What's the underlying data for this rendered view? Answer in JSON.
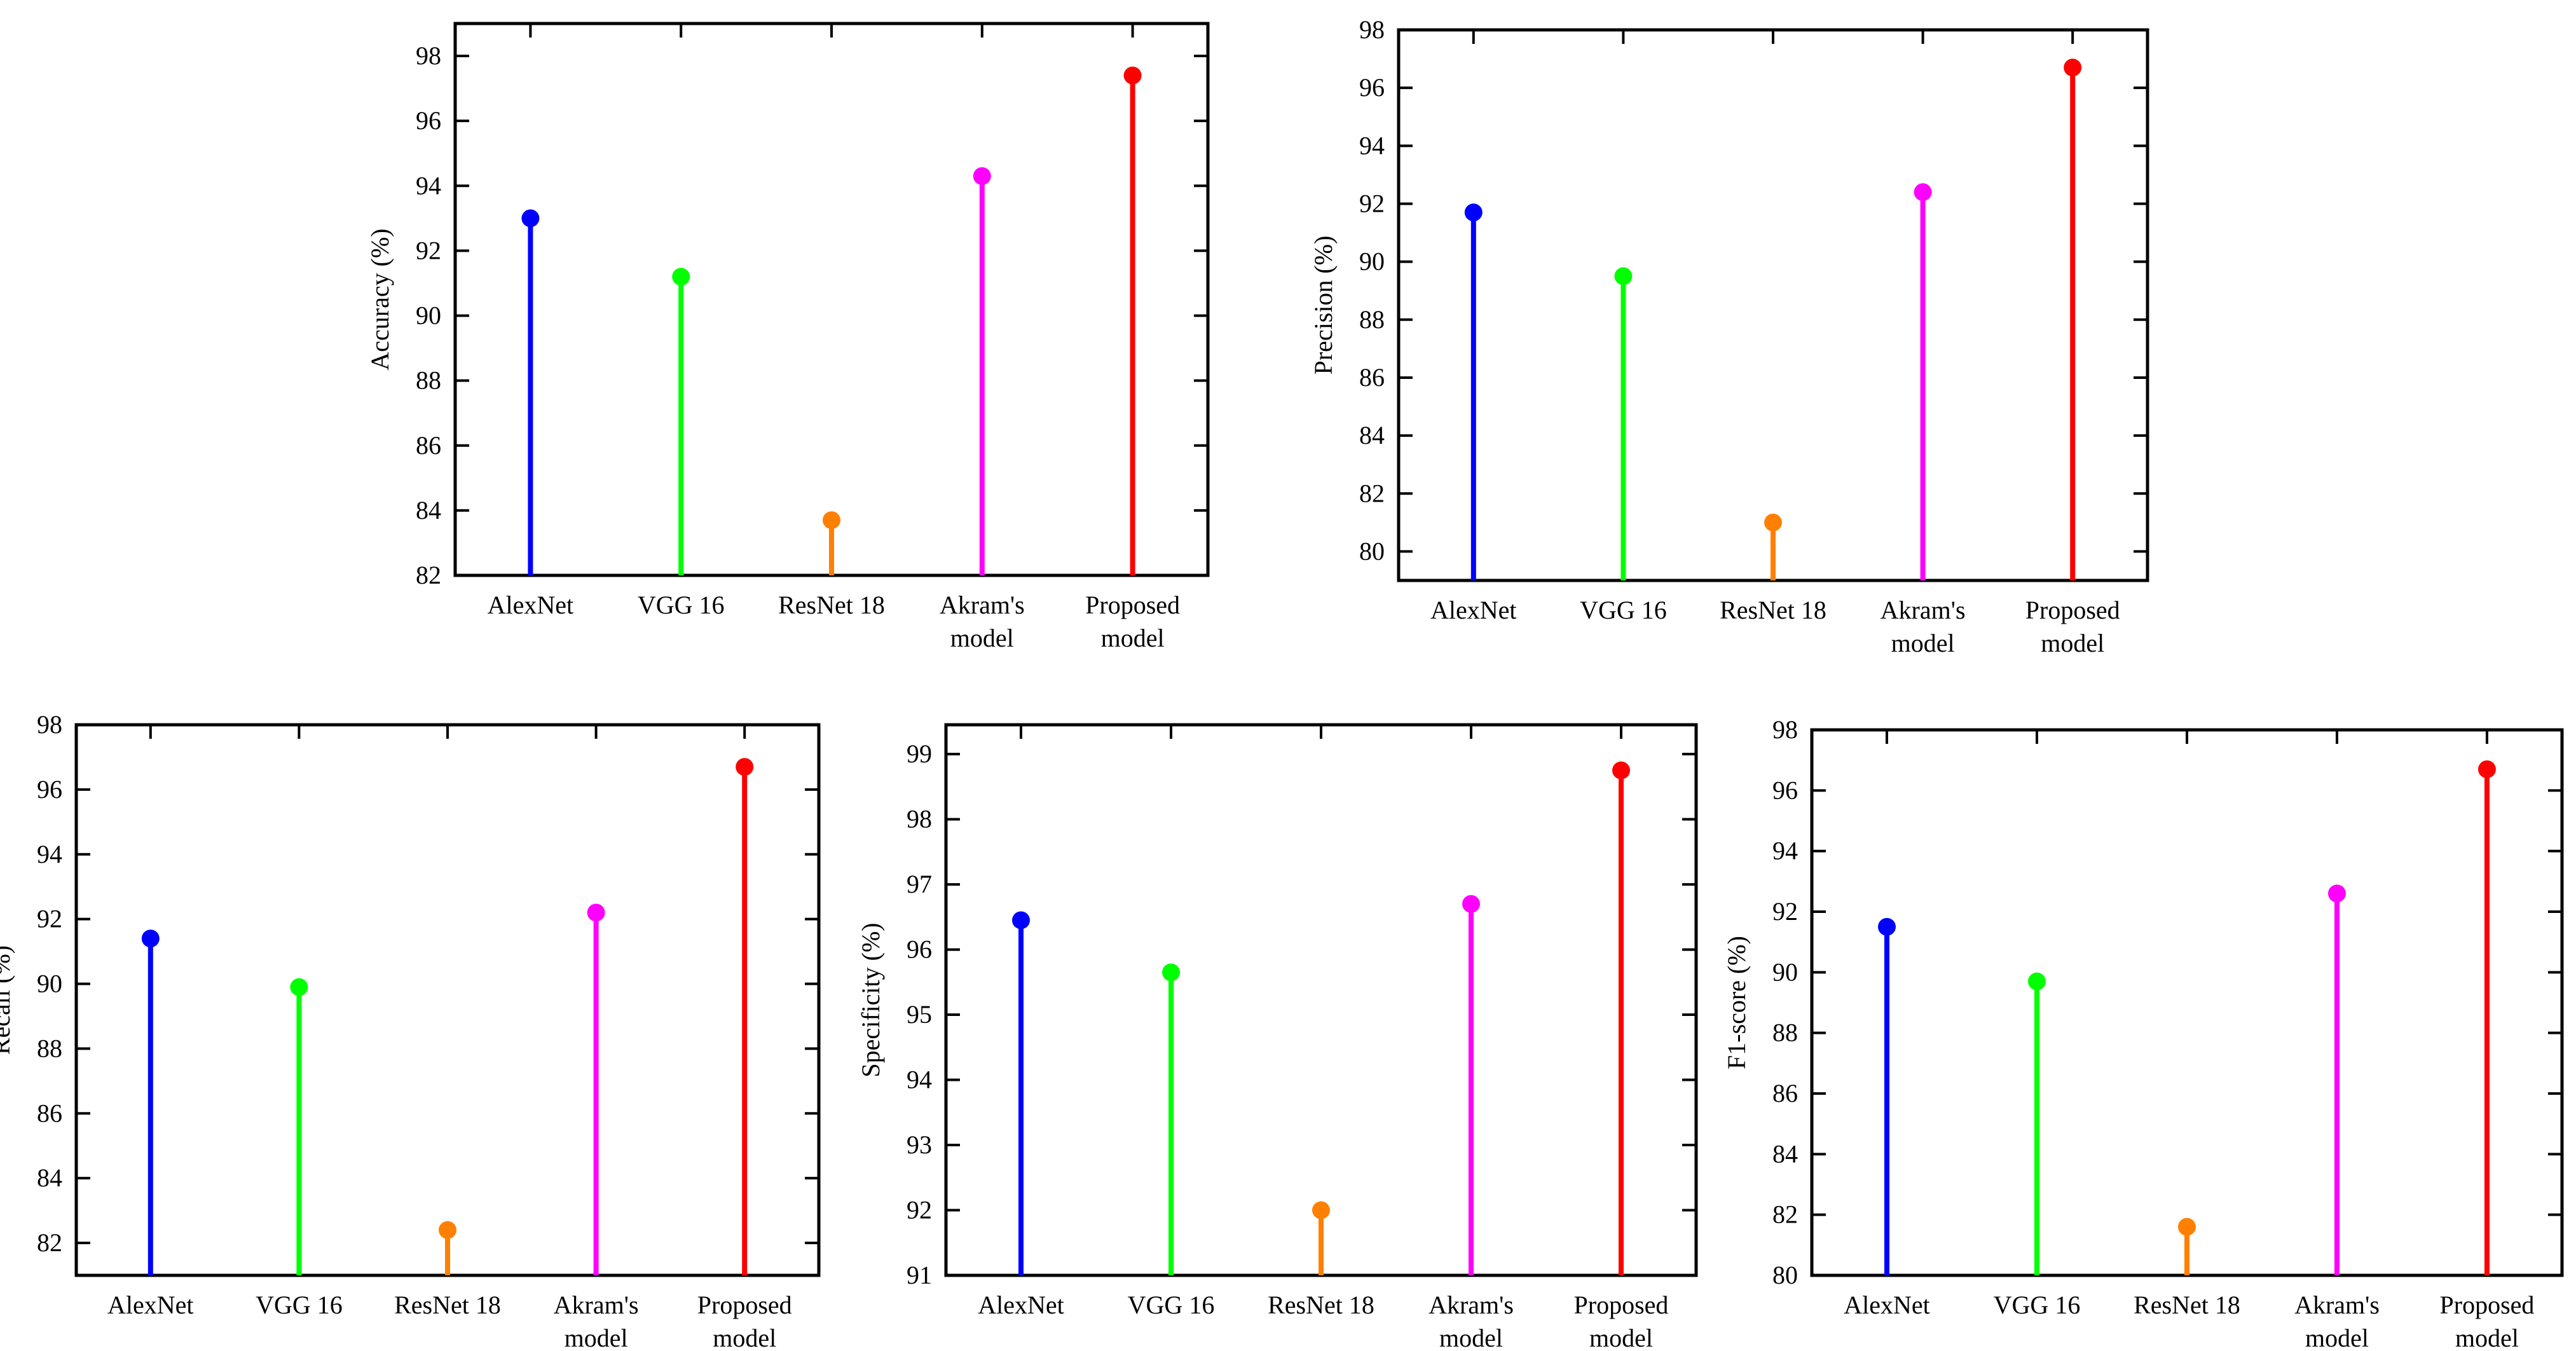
{
  "colors": {
    "alexnet": "#0000ff",
    "vgg16": "#00ff00",
    "resnet18": "#ff8000",
    "akram": "#ff00ff",
    "proposed": "#ff0000"
  },
  "chart_data": [
    {
      "id": "accuracy",
      "type": "lollipop",
      "title": "",
      "xlabel": "",
      "ylabel": "Accuracy (%)",
      "categories": [
        [
          "AlexNet"
        ],
        [
          "VGG 16"
        ],
        [
          "ResNet 18"
        ],
        [
          "Akram's",
          "model"
        ],
        [
          "Proposed",
          "model"
        ]
      ],
      "category_keys": [
        "alexnet",
        "vgg16",
        "resnet18",
        "akram",
        "proposed"
      ],
      "values": [
        93.0,
        91.2,
        83.7,
        94.3,
        97.4
      ],
      "ylim": [
        82,
        99
      ],
      "yticks": [
        82,
        84,
        86,
        88,
        90,
        92,
        94,
        96,
        98
      ],
      "grid": false
    },
    {
      "id": "precision",
      "type": "lollipop",
      "title": "",
      "xlabel": "",
      "ylabel": "Precision (%)",
      "categories": [
        [
          "AlexNet"
        ],
        [
          "VGG 16"
        ],
        [
          "ResNet 18"
        ],
        [
          "Akram's",
          "model"
        ],
        [
          "Proposed",
          "model"
        ]
      ],
      "category_keys": [
        "alexnet",
        "vgg16",
        "resnet18",
        "akram",
        "proposed"
      ],
      "values": [
        91.7,
        89.5,
        81.0,
        92.4,
        96.7
      ],
      "ylim": [
        79,
        98
      ],
      "yticks": [
        80,
        82,
        84,
        86,
        88,
        90,
        92,
        94,
        96,
        98
      ],
      "grid": false
    },
    {
      "id": "recall",
      "type": "lollipop",
      "title": "",
      "xlabel": "",
      "ylabel": "Recall (%)",
      "categories": [
        [
          "AlexNet"
        ],
        [
          "VGG 16"
        ],
        [
          "ResNet 18"
        ],
        [
          "Akram's",
          "model"
        ],
        [
          "Proposed",
          "model"
        ]
      ],
      "category_keys": [
        "alexnet",
        "vgg16",
        "resnet18",
        "akram",
        "proposed"
      ],
      "values": [
        91.4,
        89.9,
        82.4,
        92.2,
        96.7
      ],
      "ylim": [
        81,
        98
      ],
      "yticks": [
        82,
        84,
        86,
        88,
        90,
        92,
        94,
        96,
        98
      ],
      "grid": false
    },
    {
      "id": "specificity",
      "type": "lollipop",
      "title": "",
      "xlabel": "",
      "ylabel": "Specificity (%)",
      "categories": [
        [
          "AlexNet"
        ],
        [
          "VGG 16"
        ],
        [
          "ResNet 18"
        ],
        [
          "Akram's",
          "model"
        ],
        [
          "Proposed",
          "model"
        ]
      ],
      "category_keys": [
        "alexnet",
        "vgg16",
        "resnet18",
        "akram",
        "proposed"
      ],
      "values": [
        96.45,
        95.65,
        92.0,
        96.7,
        98.75
      ],
      "ylim": [
        91,
        99.45
      ],
      "yticks": [
        91,
        92,
        93,
        94,
        95,
        96,
        97,
        98,
        99
      ],
      "grid": false
    },
    {
      "id": "f1score",
      "type": "lollipop",
      "title": "",
      "xlabel": "",
      "ylabel": "F1-score (%)",
      "categories": [
        [
          "AlexNet"
        ],
        [
          "VGG 16"
        ],
        [
          "ResNet 18"
        ],
        [
          "Akram's",
          "model"
        ],
        [
          "Proposed",
          "model"
        ]
      ],
      "category_keys": [
        "alexnet",
        "vgg16",
        "resnet18",
        "akram",
        "proposed"
      ],
      "values": [
        91.5,
        89.7,
        81.6,
        92.6,
        96.7
      ],
      "ylim": [
        80,
        98
      ],
      "yticks": [
        80,
        82,
        84,
        86,
        88,
        90,
        92,
        94,
        96,
        98
      ],
      "grid": false
    }
  ]
}
